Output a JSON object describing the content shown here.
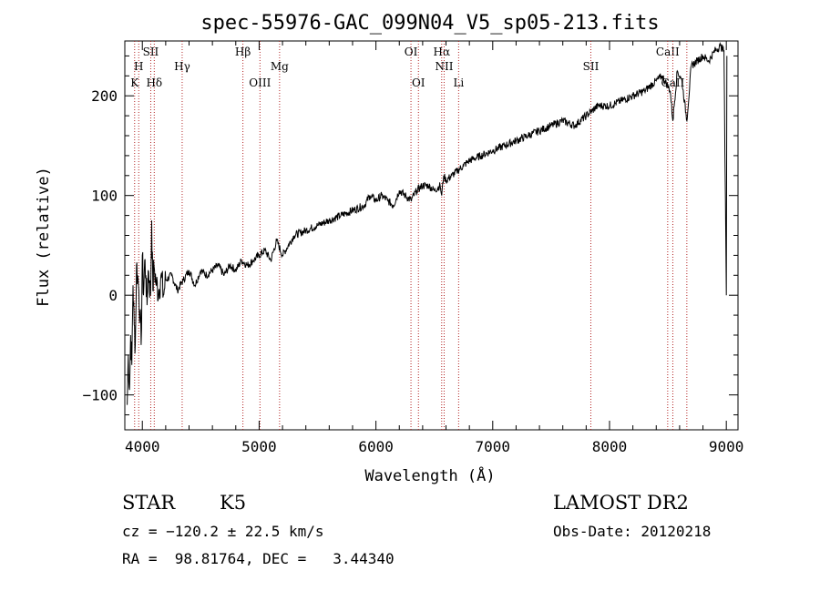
{
  "chart_data": {
    "type": "line",
    "title": "spec-55976-GAC_099N04_V5_sp05-213.fits",
    "xlabel": "Wavelength (Å)",
    "ylabel": "Flux (relative)",
    "xlim": [
      3850,
      9100
    ],
    "ylim": [
      -135,
      255
    ],
    "x_ticks": [
      4000,
      5000,
      6000,
      7000,
      8000,
      9000
    ],
    "y_ticks": [
      -100,
      0,
      100,
      200
    ],
    "grid": false,
    "series": [
      {
        "x": [
          3870,
          3880,
          3890,
          3900,
          3910,
          3920,
          3930,
          3940,
          3950,
          3960,
          3970,
          3980,
          3990,
          4000,
          4010,
          4020,
          4030,
          4040,
          4050,
          4060,
          4070,
          4080,
          4090,
          4100,
          4120,
          4140,
          4160,
          4180,
          4200,
          4250,
          4300,
          4350,
          4400,
          4450,
          4500,
          4550,
          4600,
          4650,
          4700,
          4750,
          4800,
          4850,
          4900,
          4950,
          5000,
          5050,
          5100,
          5150,
          5200,
          5300,
          5400,
          5500,
          5600,
          5700,
          5800,
          5900,
          5950,
          6000,
          6050,
          6100,
          6150,
          6200,
          6250,
          6300,
          6350,
          6400,
          6450,
          6500,
          6550,
          6563,
          6580,
          6600,
          6650,
          6700,
          6750,
          6800,
          6900,
          7000,
          7100,
          7200,
          7300,
          7400,
          7500,
          7600,
          7700,
          7800,
          7850,
          7900,
          8000,
          8100,
          8200,
          8300,
          8400,
          8450,
          8498,
          8520,
          8542,
          8580,
          8620,
          8662,
          8700,
          8750,
          8800,
          8850,
          8900,
          8950,
          8980,
          9000,
          9005
        ],
        "y": [
          -110,
          -60,
          -95,
          -40,
          -70,
          10,
          -30,
          -50,
          30,
          20,
          5,
          -20,
          -50,
          40,
          0,
          35,
          20,
          -10,
          25,
          15,
          0,
          75,
          5,
          30,
          10,
          5,
          20,
          0,
          15,
          20,
          5,
          15,
          25,
          10,
          25,
          20,
          25,
          30,
          20,
          30,
          25,
          35,
          30,
          35,
          40,
          45,
          35,
          55,
          40,
          60,
          65,
          70,
          75,
          80,
          85,
          90,
          100,
          95,
          100,
          95,
          90,
          105,
          100,
          95,
          105,
          110,
          110,
          105,
          110,
          100,
          120,
          115,
          120,
          125,
          130,
          135,
          140,
          145,
          150,
          155,
          160,
          165,
          170,
          175,
          170,
          180,
          185,
          190,
          190,
          195,
          200,
          205,
          215,
          220,
          210,
          205,
          175,
          225,
          215,
          175,
          230,
          235,
          240,
          235,
          245,
          250,
          245,
          0,
          240
        ]
      }
    ],
    "line_markers": [
      {
        "label": "K",
        "x": 3934,
        "row": 3
      },
      {
        "label": "H",
        "x": 3969,
        "row": 2
      },
      {
        "label": "SII",
        "x": 4072,
        "row": 1
      },
      {
        "label": "Hδ",
        "x": 4102,
        "row": 3
      },
      {
        "label": "Hγ",
        "x": 4341,
        "row": 2
      },
      {
        "label": "Hβ",
        "x": 4861,
        "row": 1
      },
      {
        "label": "OIII",
        "x": 5007,
        "row": 3
      },
      {
        "label": "Mg",
        "x": 5175,
        "row": 2
      },
      {
        "label": "OI",
        "x": 6300,
        "row": 1
      },
      {
        "label": "OI",
        "x": 6364,
        "row": 3
      },
      {
        "label": "Hα",
        "x": 6563,
        "row": 1
      },
      {
        "label": "NII",
        "x": 6584,
        "row": 2
      },
      {
        "label": "Li",
        "x": 6708,
        "row": 3
      },
      {
        "label": "SII",
        "x": 7840,
        "row": 2
      },
      {
        "label": "CaII",
        "x": 8498,
        "row": 1
      },
      {
        "label": "CaII",
        "x": 8542,
        "row": 3
      },
      {
        "label": "",
        "x": 8662,
        "row": 3
      }
    ]
  },
  "info": {
    "object_class": "STAR",
    "subclass": "K5",
    "survey": "LAMOST DR2",
    "velocity": "cz = −120.2 ± 22.5 km/s",
    "obs_date": "Obs-Date: 20120218",
    "coords": "RA =  98.81764, DEC =   3.44340"
  }
}
